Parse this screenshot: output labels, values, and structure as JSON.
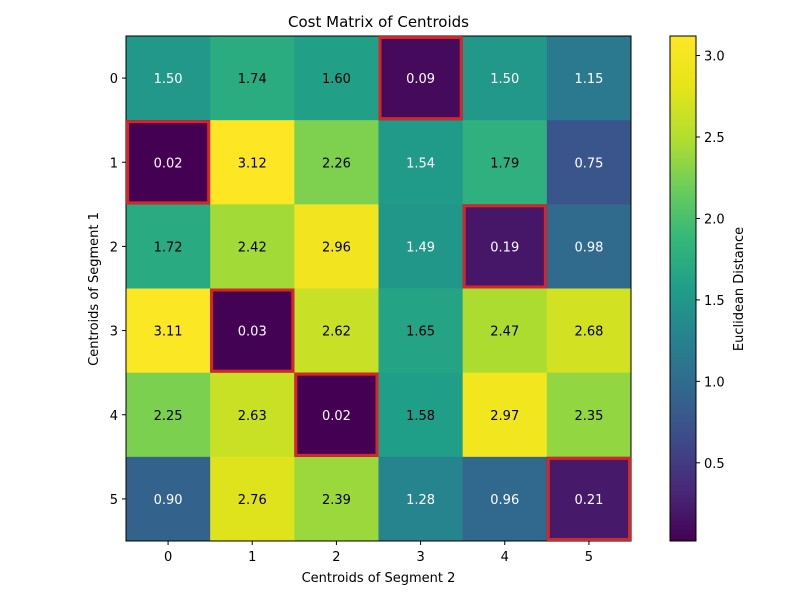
{
  "chart_data": {
    "type": "heatmap",
    "title": "Cost Matrix of Centroids",
    "xlabel": "Centroids of Segment 2",
    "ylabel": "Centroids of Segment 1",
    "x_categories": [
      "0",
      "1",
      "2",
      "3",
      "4",
      "5"
    ],
    "y_categories": [
      "0",
      "1",
      "2",
      "3",
      "4",
      "5"
    ],
    "values": [
      [
        1.5,
        1.74,
        1.6,
        0.09,
        1.5,
        1.15
      ],
      [
        0.02,
        3.12,
        2.26,
        1.54,
        1.79,
        0.75
      ],
      [
        1.72,
        2.42,
        2.96,
        1.49,
        0.19,
        0.98
      ],
      [
        3.11,
        0.03,
        2.62,
        1.65,
        2.47,
        2.68
      ],
      [
        2.25,
        2.63,
        0.02,
        1.58,
        2.97,
        2.35
      ],
      [
        0.9,
        2.76,
        2.39,
        1.28,
        0.96,
        0.21
      ]
    ],
    "value_labels": [
      [
        "1.50",
        "1.74",
        "1.60",
        "0.09",
        "1.50",
        "1.15"
      ],
      [
        "0.02",
        "3.12",
        "2.26",
        "1.54",
        "1.79",
        "0.75"
      ],
      [
        "1.72",
        "2.42",
        "2.96",
        "1.49",
        "0.19",
        "0.98"
      ],
      [
        "3.11",
        "0.03",
        "2.62",
        "1.65",
        "2.47",
        "2.68"
      ],
      [
        "2.25",
        "2.63",
        "0.02",
        "1.58",
        "2.97",
        "2.35"
      ],
      [
        "0.90",
        "2.76",
        "2.39",
        "1.28",
        "0.96",
        "0.21"
      ]
    ],
    "highlighted_cells": [
      [
        0,
        3
      ],
      [
        1,
        0
      ],
      [
        2,
        4
      ],
      [
        3,
        1
      ],
      [
        4,
        2
      ],
      [
        5,
        5
      ]
    ],
    "highlight_color": "#d62728",
    "colormap": "viridis",
    "color_range": [
      0.02,
      3.12
    ],
    "colorbar": {
      "label": "Euclidean Distance",
      "ticks": [
        0.5,
        1.0,
        1.5,
        2.0,
        2.5,
        3.0
      ],
      "tick_labels": [
        "0.5",
        "1.0",
        "1.5",
        "2.0",
        "2.5",
        "3.0"
      ]
    },
    "grid": false
  }
}
